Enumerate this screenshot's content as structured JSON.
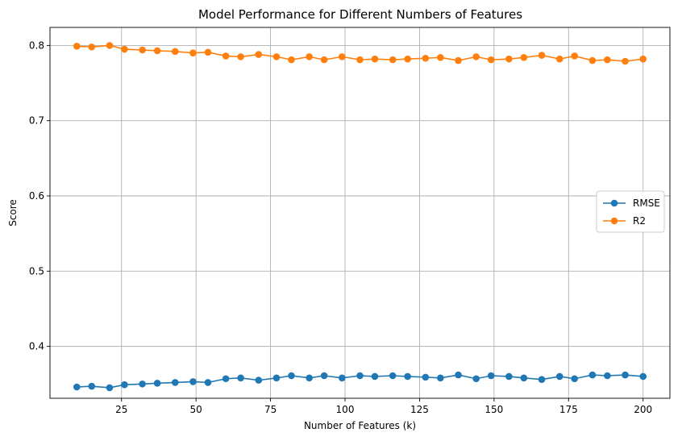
{
  "chart_data": {
    "type": "line",
    "title": "Model Performance for Different Numbers of Features",
    "xlabel": "Number of Features (k)",
    "ylabel": "Score",
    "xlim": [
      1,
      209
    ],
    "ylim": [
      0.331,
      0.824
    ],
    "xticks": [
      25,
      50,
      75,
      100,
      125,
      150,
      175,
      200
    ],
    "yticks": [
      0.4,
      0.5,
      0.6,
      0.7,
      0.8
    ],
    "xtick_labels": [
      "25",
      "50",
      "75",
      "100",
      "125",
      "150",
      "175",
      "200"
    ],
    "ytick_labels": [
      "0.4",
      "0.5",
      "0.6",
      "0.7",
      "0.8"
    ],
    "grid": true,
    "legend_position": "center-right",
    "x": [
      10,
      15,
      21,
      26,
      32,
      37,
      43,
      49,
      54,
      60,
      65,
      71,
      77,
      82,
      88,
      93,
      99,
      105,
      110,
      116,
      121,
      127,
      132,
      138,
      144,
      149,
      155,
      160,
      166,
      172,
      177,
      183,
      188,
      194,
      200
    ],
    "series": [
      {
        "name": "RMSE",
        "color": "#1f77b4",
        "values": [
          0.346,
          0.347,
          0.345,
          0.349,
          0.35,
          0.351,
          0.352,
          0.353,
          0.352,
          0.357,
          0.358,
          0.355,
          0.358,
          0.361,
          0.358,
          0.361,
          0.358,
          0.361,
          0.36,
          0.361,
          0.36,
          0.359,
          0.358,
          0.362,
          0.357,
          0.361,
          0.36,
          0.358,
          0.356,
          0.36,
          0.357,
          0.362,
          0.361,
          0.362,
          0.36
        ]
      },
      {
        "name": "R2",
        "color": "#ff7f0e",
        "values": [
          0.799,
          0.798,
          0.8,
          0.795,
          0.794,
          0.793,
          0.792,
          0.79,
          0.791,
          0.786,
          0.785,
          0.788,
          0.785,
          0.781,
          0.785,
          0.781,
          0.785,
          0.781,
          0.782,
          0.781,
          0.782,
          0.783,
          0.784,
          0.78,
          0.785,
          0.781,
          0.782,
          0.784,
          0.787,
          0.782,
          0.786,
          0.78,
          0.781,
          0.779,
          0.782
        ]
      }
    ]
  }
}
